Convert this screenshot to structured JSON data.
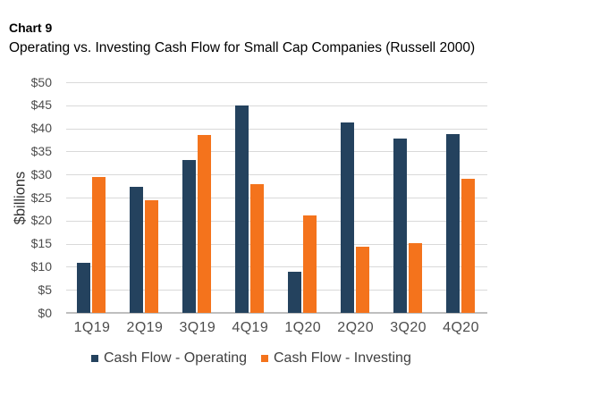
{
  "title": "Chart 9",
  "subtitle": "Operating vs. Investing Cash Flow for Small Cap Companies (Russell 2000)",
  "chart_data": {
    "type": "bar",
    "categories": [
      "1Q19",
      "2Q19",
      "3Q19",
      "4Q19",
      "1Q20",
      "2Q20",
      "3Q20",
      "4Q20"
    ],
    "series": [
      {
        "name": "Cash Flow - Operating",
        "color": "#24425E",
        "values": [
          10.8,
          27.3,
          33.1,
          44.9,
          8.9,
          41.2,
          37.7,
          38.8
        ]
      },
      {
        "name": "Cash Flow - Investing",
        "color": "#F4731C",
        "values": [
          29.5,
          24.5,
          38.5,
          28.0,
          21.1,
          14.3,
          15.1,
          29.1
        ]
      }
    ],
    "ylabel": "$billions",
    "ylim": [
      0,
      50
    ],
    "ytick_step": 5,
    "ytick_prefix": "$",
    "grid": true,
    "legend_position": "bottom"
  },
  "colors": {
    "gridline": "#d9d9d9",
    "axis_line": "#bfbfbf",
    "tick_text": "#4d4d4d"
  }
}
